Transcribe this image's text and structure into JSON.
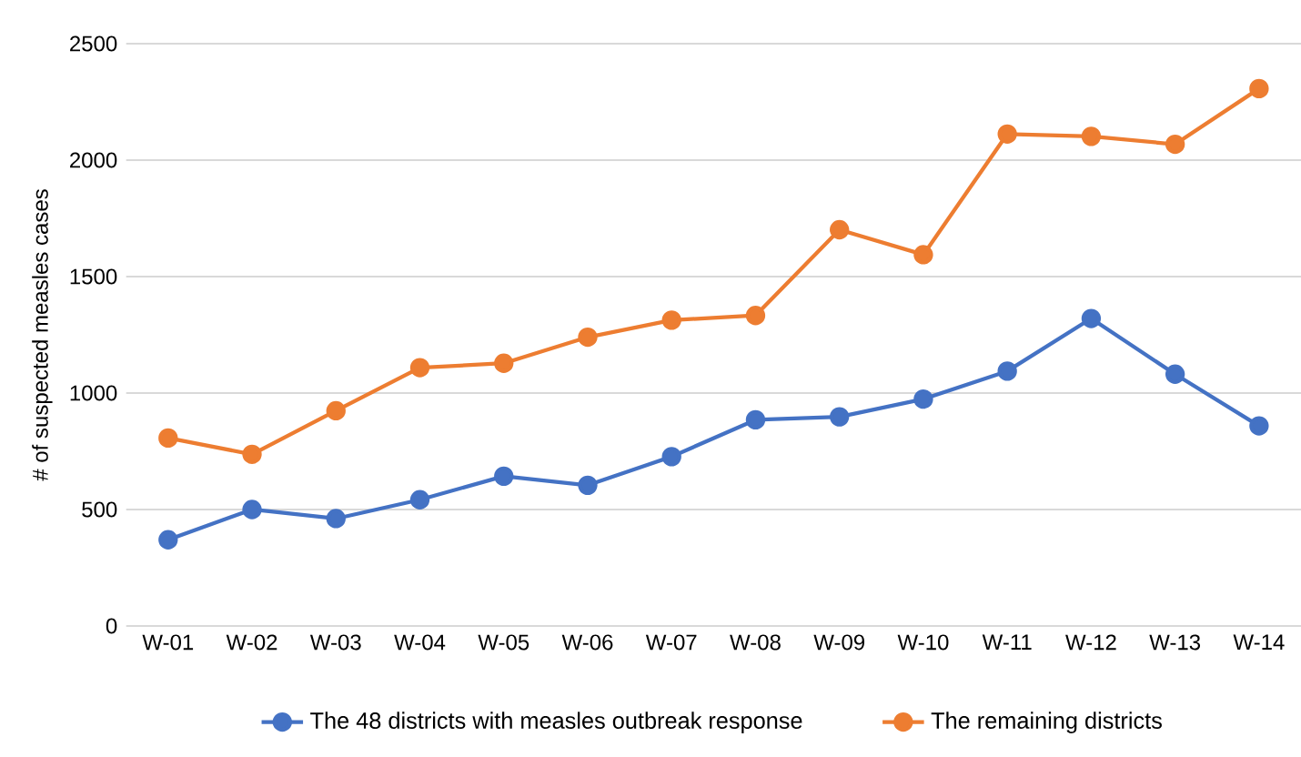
{
  "chart_data": {
    "type": "line",
    "ylabel": "# of suspected measles cases",
    "categories": [
      "W-01",
      "W-02",
      "W-03",
      "W-04",
      "W-05",
      "W-06",
      "W-07",
      "W-08",
      "W-09",
      "W-10",
      "W-11",
      "W-12",
      "W-13",
      "W-14"
    ],
    "series": [
      {
        "name": "The 48 districts with measles outbreak response",
        "color": "#4472c4",
        "values": [
          370,
          500,
          461,
          542,
          643,
          604,
          727,
          885,
          898,
          974,
          1094,
          1320,
          1081,
          859
        ]
      },
      {
        "name": "The remaining districts",
        "color": "#ed7d31",
        "values": [
          807,
          737,
          924,
          1109,
          1128,
          1240,
          1313,
          1333,
          1701,
          1594,
          2112,
          2102,
          2068,
          2307
        ]
      }
    ],
    "ylim": [
      0,
      2500
    ],
    "yticks": [
      0,
      500,
      1000,
      1500,
      2000,
      2500
    ],
    "grid": "y",
    "legend": "bottom",
    "marker": "circle",
    "line_style": "solid"
  }
}
